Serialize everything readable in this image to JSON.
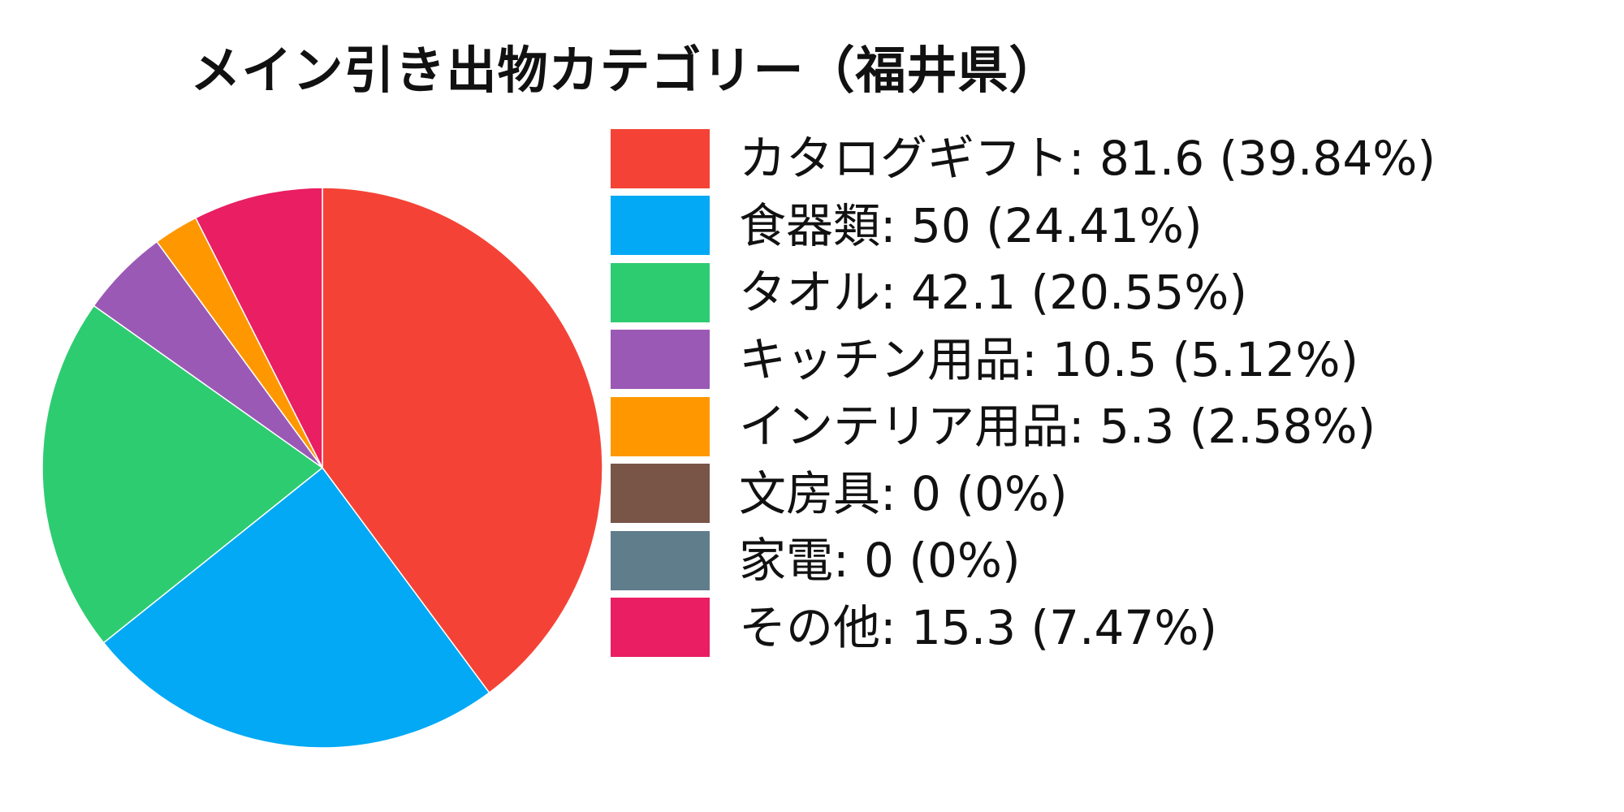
{
  "chart_data": {
    "type": "pie",
    "title": "メイン引き出物カテゴリー（福井県）",
    "legend_position": "right",
    "slices": [
      {
        "label": "カタログギフト: 81.6 (39.84%)",
        "name": "カタログギフト",
        "value": 81.6,
        "percent": 39.84,
        "color": "#F44336"
      },
      {
        "label": "食器類: 50 (24.41%)",
        "name": "食器類",
        "value": 50,
        "percent": 24.41,
        "color": "#03A9F4"
      },
      {
        "label": "タオル: 42.1 (20.55%)",
        "name": "タオル",
        "value": 42.1,
        "percent": 20.55,
        "color": "#2ECC71"
      },
      {
        "label": "キッチン用品: 10.5 (5.12%)",
        "name": "キッチン用品",
        "value": 10.5,
        "percent": 5.12,
        "color": "#9B59B6"
      },
      {
        "label": "インテリア用品: 5.3 (2.58%)",
        "name": "インテリア用品",
        "value": 5.3,
        "percent": 2.58,
        "color": "#FF9800"
      },
      {
        "label": "文房具: 0 (0%)",
        "name": "文房具",
        "value": 0,
        "percent": 0,
        "color": "#795548"
      },
      {
        "label": "家電: 0 (0%)",
        "name": "家電",
        "value": 0,
        "percent": 0,
        "color": "#607D8B"
      },
      {
        "label": "その他: 15.3 (7.47%)",
        "name": "その他",
        "value": 15.3,
        "percent": 7.47,
        "color": "#E91E63"
      }
    ]
  }
}
